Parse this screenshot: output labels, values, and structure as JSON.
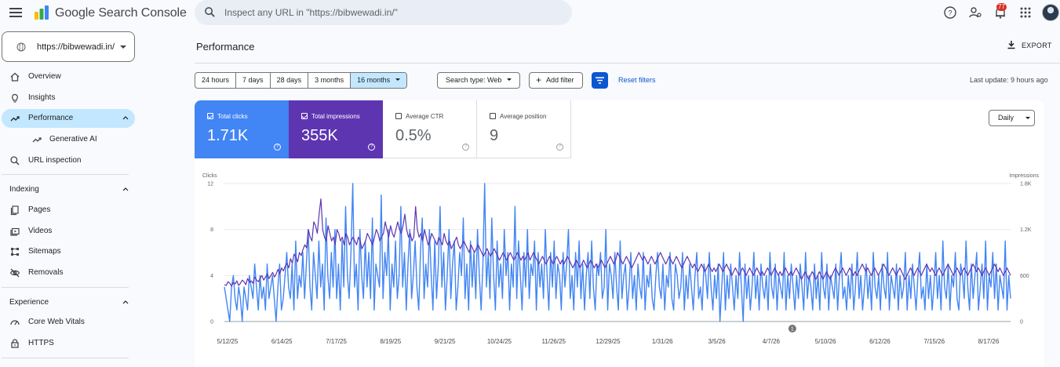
{
  "app": {
    "title": "Google Search Console"
  },
  "search": {
    "placeholder": "Inspect any URL in \"https://bibwewadi.in/\""
  },
  "topbar": {
    "notifications_count": "77"
  },
  "property": {
    "url": "https://bibwewadi.in/"
  },
  "sidebar": {
    "items": [
      {
        "label": "Overview",
        "icon": "home-icon"
      },
      {
        "label": "Insights",
        "icon": "lightbulb-icon"
      },
      {
        "label": "Performance",
        "icon": "trending-up-icon",
        "active": true
      },
      {
        "label": "Generative AI",
        "icon": "trending-up-icon",
        "sub": true
      },
      {
        "label": "URL inspection",
        "icon": "search-icon"
      }
    ],
    "indexing": {
      "heading": "Indexing",
      "items": [
        {
          "label": "Pages",
          "icon": "pages-icon"
        },
        {
          "label": "Videos",
          "icon": "video-icon"
        },
        {
          "label": "Sitemaps",
          "icon": "sitemap-icon"
        },
        {
          "label": "Removals",
          "icon": "eye-off-icon"
        }
      ]
    },
    "experience": {
      "heading": "Experience",
      "items": [
        {
          "label": "Core Web Vitals",
          "icon": "speedometer-icon"
        },
        {
          "label": "HTTPS",
          "icon": "lock-icon"
        }
      ]
    }
  },
  "main": {
    "title": "Performance",
    "export_label": "EXPORT",
    "ranges": [
      "24 hours",
      "7 days",
      "28 days",
      "3 months",
      "16 months"
    ],
    "selected_range": "16 months",
    "search_type": "Search type: Web",
    "add_filter": "Add filter",
    "reset_filters": "Reset filters",
    "last_update": "Last update: 9 hours ago"
  },
  "metrics": {
    "clicks": {
      "label": "Total clicks",
      "value": "1.71K",
      "checked": true
    },
    "impressions": {
      "label": "Total impressions",
      "value": "355K",
      "checked": true
    },
    "ctr": {
      "label": "Average CTR",
      "value": "0.5%",
      "checked": false
    },
    "position": {
      "label": "Average position",
      "value": "9",
      "checked": false
    }
  },
  "granularity": "Daily",
  "colors": {
    "clicks": "#4285f4",
    "impressions": "#5e35b1",
    "accent": "#0b57d0",
    "active_bg": "#c2e7ff"
  },
  "chart_data": {
    "type": "line",
    "left_axis": {
      "label": "Clicks",
      "ticks": [
        "0",
        "4",
        "8",
        "12"
      ],
      "ylim": [
        0,
        12
      ]
    },
    "right_axis": {
      "label": "Impressions",
      "ticks": [
        "0",
        "600",
        "1.2K",
        "1.8K"
      ],
      "ylim": [
        0,
        1800
      ]
    },
    "x_ticks": [
      "5/12/25",
      "6/14/25",
      "7/17/25",
      "8/19/25",
      "9/21/25",
      "10/24/25",
      "11/26/25",
      "12/29/25",
      "1/31/26",
      "3/5/26",
      "4/7/26",
      "5/10/26",
      "6/12/26",
      "7/15/26",
      "8/17/26"
    ],
    "annotation": {
      "label": "1",
      "x": "4/7/26"
    },
    "series": [
      {
        "name": "Clicks",
        "axis": "left",
        "values": [
          3,
          2,
          1,
          0,
          3,
          4,
          2,
          1,
          3,
          2,
          0,
          3,
          2,
          1,
          4,
          3,
          2,
          5,
          3,
          1,
          4,
          2,
          3,
          1,
          5,
          2,
          3,
          4,
          2,
          0,
          3,
          5,
          1,
          2,
          4,
          6,
          3,
          2,
          5,
          1,
          7,
          2,
          4,
          3,
          6,
          2,
          5,
          8,
          3,
          1,
          6,
          4,
          2,
          7,
          3,
          5,
          1,
          9,
          4,
          2,
          6,
          3,
          8,
          2,
          5,
          1,
          7,
          3,
          10,
          4,
          2,
          6,
          12,
          3,
          5,
          1,
          8,
          4,
          2,
          7,
          3,
          6,
          2,
          9,
          1,
          5,
          4,
          3,
          11,
          2,
          6,
          4,
          8,
          1,
          5,
          3,
          7,
          2,
          4,
          10,
          3,
          6,
          1,
          5,
          8,
          2,
          4,
          7,
          3,
          1,
          6,
          9,
          2,
          5,
          3,
          8,
          4,
          1,
          7,
          2,
          5,
          10,
          3,
          6,
          1,
          4,
          8,
          2,
          5,
          7,
          1,
          3,
          6,
          4,
          9,
          2,
          5,
          1,
          7,
          3,
          6,
          2,
          8,
          4,
          1,
          5,
          12,
          3,
          6,
          2,
          9,
          4,
          1,
          7,
          3,
          5,
          2,
          8,
          4,
          6,
          1,
          5,
          3,
          10,
          2,
          7,
          4,
          1,
          6,
          3,
          8,
          2,
          5,
          4,
          7,
          1,
          6,
          3,
          5,
          2,
          8,
          4,
          1,
          6,
          3,
          7,
          2,
          5,
          4,
          1,
          6,
          3,
          5,
          8,
          2,
          4,
          1,
          6,
          3,
          7,
          2,
          5,
          1,
          4,
          6,
          2,
          7,
          3,
          1,
          5,
          4,
          6,
          2,
          3,
          8,
          1,
          5,
          4,
          2,
          6,
          3,
          1,
          7,
          2,
          4,
          5,
          1,
          3,
          6,
          2,
          4,
          1,
          5,
          3,
          2,
          6,
          1,
          4,
          3,
          5,
          2,
          1,
          4,
          6,
          3,
          2,
          5,
          1,
          4,
          3,
          6,
          2,
          1,
          5,
          4,
          2,
          3,
          6,
          1,
          4,
          2,
          5,
          3,
          1,
          4,
          6,
          2,
          3,
          1,
          5,
          4,
          2,
          6,
          3,
          1,
          4,
          2,
          5,
          0,
          3,
          6,
          1,
          4,
          2,
          5,
          3,
          1,
          4,
          2,
          6,
          3,
          0,
          5,
          2,
          4,
          1,
          3,
          6,
          2,
          4,
          1,
          5,
          3,
          2,
          4,
          1,
          6,
          3,
          2,
          5,
          1,
          4,
          3,
          2,
          6,
          1,
          4,
          2,
          5,
          3,
          1,
          4,
          2,
          5,
          3,
          1,
          6,
          2,
          4,
          3,
          1,
          5,
          2,
          4,
          1,
          6,
          3,
          2,
          5,
          1,
          4,
          3,
          2,
          5,
          1,
          4,
          6,
          2,
          3,
          1,
          4,
          2,
          5,
          1,
          3,
          6,
          2,
          4,
          1,
          3,
          5,
          2,
          4,
          1,
          6,
          3,
          2,
          4,
          1,
          5,
          3,
          2,
          6,
          1,
          4,
          3,
          2,
          5,
          1,
          4,
          2,
          3,
          6,
          1,
          4,
          2,
          5,
          3,
          1,
          4,
          6,
          2,
          3,
          1,
          5,
          2,
          4,
          1,
          3,
          6,
          2,
          4,
          1,
          7,
          3,
          2,
          5,
          1,
          4,
          3,
          6,
          2,
          1,
          5,
          4,
          2,
          7,
          3,
          1,
          5,
          2,
          4,
          6,
          1,
          3,
          5,
          2,
          7,
          1,
          4,
          3,
          6,
          2,
          5,
          1,
          4,
          3,
          2,
          7,
          1,
          4,
          2
        ]
      },
      {
        "name": "Impressions",
        "axis": "left_scaled",
        "values": [
          480,
          470,
          520,
          500,
          460,
          510,
          490,
          530,
          470,
          500,
          540,
          520,
          480,
          560,
          510,
          530,
          500,
          580,
          540,
          520,
          560,
          600,
          540,
          580,
          620,
          560,
          600,
          640,
          580,
          620,
          680,
          620,
          700,
          660,
          720,
          760,
          700,
          820,
          760,
          880,
          840,
          780,
          900,
          860,
          940,
          1000,
          960,
          1200,
          1100,
          1050,
          1300,
          1250,
          1150,
          1400,
          1600,
          1200,
          1100,
          1050,
          1250,
          1150,
          1050,
          1100,
          1000,
          1200,
          1150,
          1050,
          1100,
          1000,
          1150,
          1100,
          1000,
          1050,
          1100,
          1050,
          1000,
          1100,
          1050,
          950,
          1000,
          1050,
          1150,
          1100,
          1050,
          1000,
          1100,
          1200,
          1150,
          1050,
          1100,
          1150,
          1300,
          1200,
          1100,
          1250,
          1150,
          1100,
          1200,
          1300,
          1200,
          1150,
          1250,
          1400,
          1200,
          1100,
          1150,
          1050,
          1100,
          1500,
          1200,
          1100,
          1150,
          1050,
          1200,
          1100,
          1000,
          1050,
          1150,
          1100,
          1050,
          1000,
          1100,
          1050,
          1000,
          1150,
          1050,
          1000,
          1050,
          950,
          1000,
          1050,
          1100,
          1000,
          950,
          1000,
          1050,
          1000,
          950,
          900,
          1000,
          950,
          900,
          950,
          1000,
          950,
          900,
          850,
          900,
          950,
          900,
          850,
          900,
          950,
          900,
          850,
          800,
          850,
          900,
          850,
          800,
          850,
          900,
          850,
          800,
          850,
          900,
          850,
          800,
          850,
          800,
          850,
          900,
          800,
          850,
          900,
          850,
          800,
          750,
          800,
          850,
          800,
          750,
          800,
          850,
          800,
          750,
          800,
          850,
          800,
          750,
          800,
          750,
          800,
          850,
          800,
          750,
          700,
          750,
          800,
          750,
          700,
          750,
          800,
          750,
          700,
          750,
          800,
          750,
          700,
          750,
          700,
          750,
          800,
          750,
          700,
          750,
          800,
          850,
          800,
          750,
          800,
          900,
          850,
          800,
          750,
          800,
          850,
          800,
          750,
          700,
          750,
          800,
          850,
          900,
          850,
          800,
          850,
          800,
          750,
          800,
          850,
          800,
          750,
          800,
          850,
          900,
          850,
          800,
          750,
          800,
          850,
          800,
          750,
          800,
          850,
          800,
          750,
          700,
          750,
          800,
          850,
          800,
          750,
          700,
          750,
          700,
          650,
          700,
          750,
          700,
          650,
          700,
          750,
          700,
          650,
          700,
          650,
          700,
          750,
          700,
          650,
          700,
          750,
          700,
          650,
          600,
          650,
          700,
          650,
          600,
          650,
          700,
          650,
          600,
          650,
          700,
          650,
          600,
          650,
          700,
          650,
          600,
          650,
          600,
          650,
          700,
          650,
          600,
          650,
          700,
          650,
          600,
          650,
          600,
          650,
          700,
          650,
          600,
          650,
          600,
          650,
          700,
          650,
          600,
          550,
          600,
          650,
          600,
          550,
          600,
          650,
          600,
          550,
          600,
          650,
          600,
          550,
          600,
          650,
          600,
          550,
          600,
          650,
          700,
          650,
          600,
          650,
          700,
          650,
          600,
          650,
          700,
          650,
          600,
          650,
          600,
          650,
          700,
          750,
          700,
          650,
          700,
          650,
          600,
          650,
          700,
          650,
          600,
          650,
          700,
          750,
          700,
          650,
          600,
          650,
          700,
          650,
          600,
          650,
          700,
          650,
          600,
          550,
          600,
          650,
          700,
          650,
          600,
          650,
          700,
          650,
          600,
          650,
          700,
          750,
          700,
          650,
          700,
          650,
          600,
          650,
          700,
          650,
          600,
          650,
          700,
          750,
          700,
          650,
          600,
          650,
          700,
          650,
          600,
          650,
          700,
          650,
          600,
          650,
          700,
          750,
          700,
          650,
          700,
          650,
          600,
          650,
          700,
          650,
          600,
          650,
          700,
          750,
          700,
          650,
          700,
          650,
          600,
          650,
          700,
          650,
          600
        ]
      }
    ]
  }
}
